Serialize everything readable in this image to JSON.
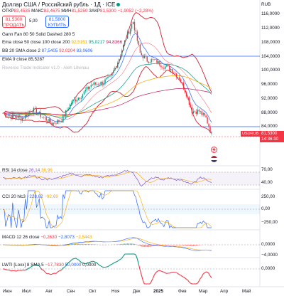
{
  "header": {
    "title": "Доллар США / Российский рубль · 1Д · ICE",
    "ohlc": {
      "open_label": "ОТКР",
      "open": "83,4535",
      "high_label": "МАКС",
      "high": "83,4675",
      "low_label": "МИН",
      "low": "81,5250",
      "close_label": "ЗАКР",
      "close": "81,5300",
      "change": "−1,9052 (−2,28%)"
    },
    "sell": {
      "price": "81,5300",
      "label": "ПРОДАТЬ"
    },
    "buy": {
      "price": "81,5800",
      "label": "КУПИТЬ"
    },
    "spread": "5,00",
    "currency": "RUB"
  },
  "indicators": [
    {
      "name": "Gann Fan 80 50 Solid Dashed 280 5",
      "values": []
    },
    {
      "name": "Ema close 50 close 100 close 200",
      "values": [
        "92,5151",
        "95,0217",
        "94,8366"
      ]
    },
    {
      "name": "BB 20 SMA close 2",
      "values": [
        "87,5405",
        "92,0204",
        "83,0606"
      ]
    },
    {
      "name": "EMA 9 close",
      "values": [
        "85,5287"
      ]
    },
    {
      "name": "Reverse Trade Indicator v1.0 - Aleh Litvinau",
      "values": []
    }
  ],
  "main_axis": [
    "116,0000",
    "112,0000",
    "108,0000",
    "104,0000",
    "100,0000",
    "96,0000",
    "92,0000",
    "88,0000",
    "84,0000"
  ],
  "price_tag": {
    "symbol": "USDRUB",
    "price": "81,5300",
    "countdown": "14:36:30"
  },
  "panes": {
    "rsi": {
      "label": "RSI 14 close",
      "v1": "26,14",
      "v2": "36,96",
      "axis": [
        "70,00",
        "40,00"
      ]
    },
    "cci": {
      "label": "CCI 20 hlc3",
      "v1": "−228,62",
      "v2": "−92,69",
      "axis": [
        "250,00",
        "0,00",
        "−250,00"
      ]
    },
    "macd": {
      "label": "MACD 12 26 close",
      "v1": "−0,2630",
      "v2": "−2,8073",
      "v3": "−2,5443",
      "axis": [
        "0,0000",
        "−4,0000"
      ]
    },
    "lwti": {
      "label": "LWTI [Loxx] 8 SMA 5",
      "v1": "−17,7830",
      "v2": "50,0000",
      "v3": "0,0000",
      "axis": [
        "0,0000"
      ]
    }
  },
  "xaxis": [
    "Июн",
    "Июл",
    "Авг",
    "Сен",
    "Окт",
    "Ноя",
    "Дек",
    "2025",
    "Фев",
    "Мар",
    "Апр",
    "Май"
  ],
  "colors": {
    "up": "#089981",
    "down": "#f23645",
    "bb": "#d1202f",
    "ema9": "#2962ff",
    "ema50": "#089981",
    "ema100": "#f7a600",
    "ema200": "#c2185b"
  }
}
